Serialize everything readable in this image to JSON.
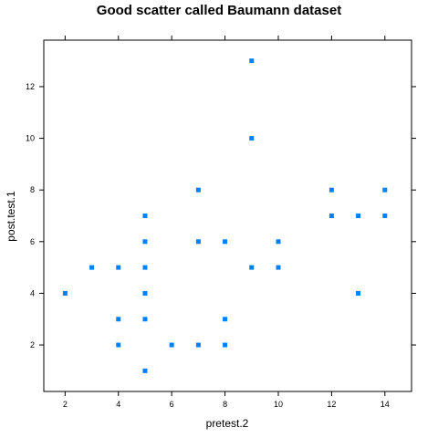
{
  "chart_data": {
    "type": "scatter",
    "title": "Good scatter called Baumann dataset",
    "xlabel": "pretest.2",
    "ylabel": "post.test.1",
    "xlim": [
      1.2,
      15.0
    ],
    "ylim": [
      0.2,
      13.8
    ],
    "x_ticks": [
      2,
      4,
      6,
      8,
      10,
      12,
      14
    ],
    "y_ticks": [
      2,
      4,
      6,
      8,
      10,
      12
    ],
    "grid": false,
    "legend": "none",
    "marker_color": "#0080ff",
    "points": [
      {
        "x": 2,
        "y": 4
      },
      {
        "x": 3,
        "y": 5
      },
      {
        "x": 4,
        "y": 5
      },
      {
        "x": 4,
        "y": 3
      },
      {
        "x": 4,
        "y": 2
      },
      {
        "x": 5,
        "y": 7
      },
      {
        "x": 5,
        "y": 6
      },
      {
        "x": 5,
        "y": 5
      },
      {
        "x": 5,
        "y": 4
      },
      {
        "x": 5,
        "y": 3
      },
      {
        "x": 5,
        "y": 1
      },
      {
        "x": 6,
        "y": 2
      },
      {
        "x": 7,
        "y": 8
      },
      {
        "x": 7,
        "y": 6
      },
      {
        "x": 7,
        "y": 2
      },
      {
        "x": 8,
        "y": 6
      },
      {
        "x": 8,
        "y": 3
      },
      {
        "x": 8,
        "y": 2
      },
      {
        "x": 9,
        "y": 13
      },
      {
        "x": 9,
        "y": 10
      },
      {
        "x": 9,
        "y": 5
      },
      {
        "x": 10,
        "y": 6
      },
      {
        "x": 10,
        "y": 5
      },
      {
        "x": 12,
        "y": 8
      },
      {
        "x": 12,
        "y": 7
      },
      {
        "x": 13,
        "y": 7
      },
      {
        "x": 13,
        "y": 4
      },
      {
        "x": 14,
        "y": 8
      },
      {
        "x": 14,
        "y": 7
      }
    ]
  }
}
